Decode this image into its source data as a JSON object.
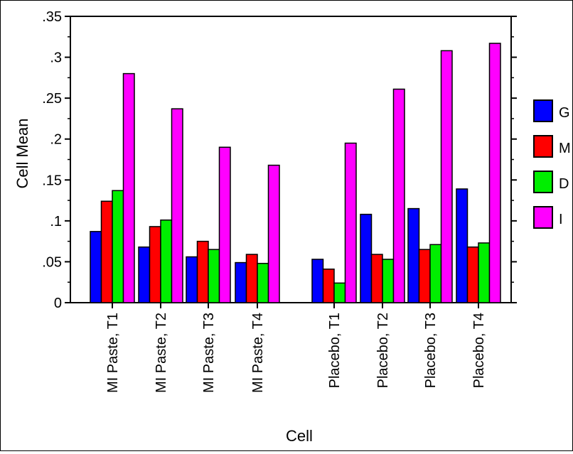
{
  "chart_data": {
    "type": "bar",
    "xlabel": "Cell",
    "ylabel": "Cell Mean",
    "ylim": [
      0,
      0.35
    ],
    "yticks": [
      0,
      0.05,
      0.1,
      0.15,
      0.2,
      0.25,
      0.3,
      0.35
    ],
    "ytick_labels": [
      "0",
      ".05",
      ".1",
      ".15",
      ".2",
      ".25",
      ".3",
      ".35"
    ],
    "legend_position": "right",
    "categories": [
      "MI Paste, T1",
      "MI Paste, T2",
      "MI Paste, T3",
      "MI Paste, T4",
      "Placebo, T1",
      "Placebo, T2",
      "Placebo, T3",
      "Placebo, T4"
    ],
    "series": [
      {
        "name": "G",
        "color": "#0000ff",
        "values": [
          0.087,
          0.068,
          0.056,
          0.049,
          0.053,
          0.108,
          0.115,
          0.139
        ]
      },
      {
        "name": "M",
        "color": "#ff0000",
        "values": [
          0.124,
          0.093,
          0.075,
          0.059,
          0.041,
          0.059,
          0.065,
          0.068
        ]
      },
      {
        "name": "D",
        "color": "#00ee00",
        "values": [
          0.137,
          0.101,
          0.065,
          0.048,
          0.024,
          0.053,
          0.071,
          0.073
        ]
      },
      {
        "name": "I",
        "color": "#ff00ff",
        "values": [
          0.28,
          0.237,
          0.19,
          0.168,
          0.195,
          0.261,
          0.308,
          0.317
        ]
      }
    ]
  }
}
